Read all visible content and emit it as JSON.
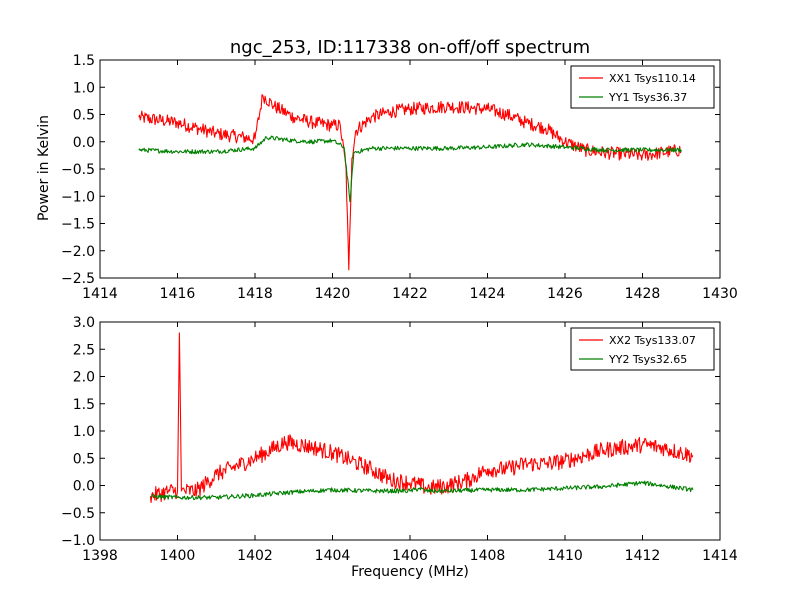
{
  "figure": {
    "title": "ngc_253, ID:117338 on-off/off spectrum"
  },
  "chart_data": [
    {
      "type": "line",
      "title": "ngc_253, ID:117338 on-off/off spectrum",
      "xlabel": "",
      "ylabel": "Power in Kelvin",
      "xlim": [
        1414,
        1430
      ],
      "ylim": [
        -2.5,
        1.5
      ],
      "xticks": [
        "1414",
        "1416",
        "1418",
        "1420",
        "1422",
        "1424",
        "1426",
        "1428",
        "1430"
      ],
      "yticks": [
        "1.5",
        "1.0",
        "0.5",
        "0.0",
        "−0.5",
        "−1.0",
        "−1.5",
        "−2.0",
        "−2.5"
      ],
      "legend_position": "top-right",
      "grid": false,
      "series": [
        {
          "name": "XX1 Tsys110.14",
          "color": "#ff0000",
          "noise": 0.12,
          "x": [
            1415.0,
            1416.0,
            1417.0,
            1418.0,
            1418.2,
            1418.5,
            1419.0,
            1419.5,
            1420.0,
            1420.2,
            1420.35,
            1420.42,
            1420.5,
            1420.6,
            1421.0,
            1421.5,
            1422.0,
            1423.0,
            1424.0,
            1424.5,
            1425.0,
            1425.5,
            1426.0,
            1426.5,
            1427.0,
            1428.0,
            1429.0
          ],
          "y": [
            0.45,
            0.35,
            0.15,
            0.05,
            0.85,
            0.65,
            0.45,
            0.35,
            0.3,
            0.3,
            -0.5,
            -2.35,
            -0.3,
            0.2,
            0.45,
            0.55,
            0.6,
            0.65,
            0.6,
            0.5,
            0.35,
            0.25,
            0.0,
            -0.15,
            -0.2,
            -0.25,
            -0.15
          ]
        },
        {
          "name": "YY1 Tsys36.37",
          "color": "#008000",
          "noise": 0.04,
          "x": [
            1415.0,
            1416.0,
            1417.0,
            1418.0,
            1418.3,
            1419.0,
            1419.5,
            1420.0,
            1420.3,
            1420.45,
            1420.55,
            1421.0,
            1422.0,
            1423.0,
            1424.0,
            1425.0,
            1426.0,
            1427.0,
            1428.0,
            1429.0
          ],
          "y": [
            -0.15,
            -0.18,
            -0.18,
            -0.12,
            0.08,
            0.02,
            0.0,
            0.02,
            -0.1,
            -1.1,
            -0.2,
            -0.12,
            -0.12,
            -0.12,
            -0.1,
            -0.05,
            -0.1,
            -0.15,
            -0.15,
            -0.15
          ]
        }
      ]
    },
    {
      "type": "line",
      "title": "",
      "xlabel": "Frequency (MHz)",
      "ylabel": "",
      "xlim": [
        1398,
        1414
      ],
      "ylim": [
        -1.0,
        3.0
      ],
      "xticks": [
        "1398",
        "1400",
        "1402",
        "1404",
        "1406",
        "1408",
        "1410",
        "1412",
        "1414"
      ],
      "yticks": [
        "3.0",
        "2.5",
        "2.0",
        "1.5",
        "1.0",
        "0.5",
        "0.0",
        "−0.5",
        "−1.0"
      ],
      "legend_position": "top-right",
      "grid": false,
      "series": [
        {
          "name": "XX2 Tsys133.07",
          "color": "#ff0000",
          "noise": 0.15,
          "x": [
            1399.3,
            1399.8,
            1400.0,
            1400.05,
            1400.1,
            1400.5,
            1401.0,
            1402.0,
            1402.8,
            1403.5,
            1404.0,
            1404.5,
            1405.0,
            1405.5,
            1406.0,
            1406.5,
            1407.0,
            1407.5,
            1408.0,
            1408.5,
            1409.0,
            1409.5,
            1410.0,
            1411.0,
            1411.5,
            1412.0,
            1412.5,
            1413.0,
            1413.3
          ],
          "y": [
            -0.2,
            -0.1,
            -0.1,
            2.8,
            -0.1,
            -0.1,
            0.2,
            0.5,
            0.8,
            0.7,
            0.6,
            0.45,
            0.3,
            0.1,
            0.05,
            -0.05,
            0.0,
            0.1,
            0.3,
            0.3,
            0.4,
            0.4,
            0.45,
            0.65,
            0.7,
            0.75,
            0.7,
            0.6,
            0.55
          ]
        },
        {
          "name": "YY2 Tsys32.65",
          "color": "#008000",
          "noise": 0.04,
          "x": [
            1399.3,
            1400.0,
            1401.0,
            1402.0,
            1403.0,
            1404.0,
            1405.0,
            1406.0,
            1406.25,
            1406.4,
            1407.0,
            1408.0,
            1409.0,
            1410.0,
            1411.0,
            1412.0,
            1413.0,
            1413.3
          ],
          "y": [
            -0.2,
            -0.22,
            -0.22,
            -0.18,
            -0.12,
            -0.08,
            -0.1,
            -0.1,
            -0.05,
            -0.1,
            -0.1,
            -0.08,
            -0.08,
            -0.05,
            -0.02,
            0.05,
            -0.05,
            -0.08
          ]
        }
      ]
    }
  ]
}
